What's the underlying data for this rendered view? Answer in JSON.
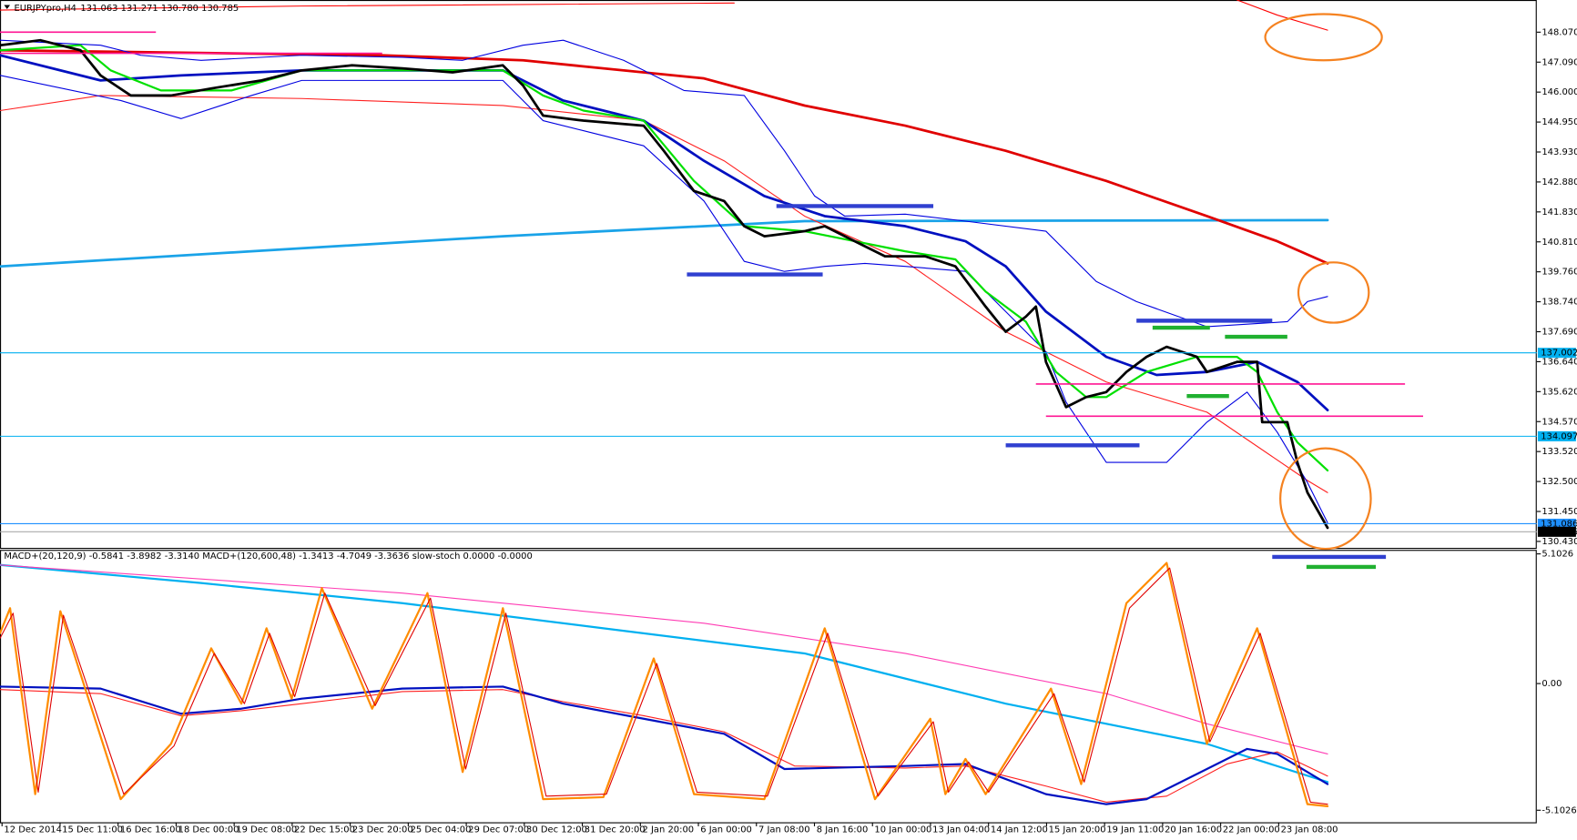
{
  "header": {
    "symbol": "EURJPYpro,H4",
    "ohlc": "131.063 131.271 130.780 130.785"
  },
  "price_axis": [
    "148.070",
    "147.090",
    "146.000",
    "144.950",
    "143.930",
    "142.880",
    "141.830",
    "140.810",
    "139.760",
    "138.740",
    "137.690",
    "136.640",
    "135.620",
    "134.570",
    "133.520",
    "132.500",
    "131.450",
    "130.430"
  ],
  "price_tags": [
    "137.002",
    "134.097",
    "131.086",
    "130.785"
  ],
  "time_axis": [
    "12 Dec 2014",
    "15 Dec 11:00",
    "16 Dec 16:00",
    "18 Dec 00:00",
    "19 Dec 08:00",
    "22 Dec 15:00",
    "23 Dec 20:00",
    "25 Dec 04:00",
    "29 Dec 07:00",
    "30 Dec 12:00",
    "31 Dec 20:00",
    "2 Jan 20:00",
    "6 Jan 00:00",
    "7 Jan 08:00",
    "8 Jan 16:00",
    "10 Jan 00:00",
    "13 Jan 04:00",
    "14 Jan 12:00",
    "15 Jan 20:00",
    "19 Jan 11:00",
    "20 Jan 16:00",
    "22 Jan 00:00",
    "23 Jan 08:00"
  ],
  "indicator": {
    "header": "MACD+(20,120,9) -0.5841 -3.8982 -3.3140  MACD+(120,600,48) -1.3413 -4.7049 -3.3636  slow-stoch 0.0000 -0.0000",
    "axis": [
      "5.1026",
      "0.00",
      "-5.1026"
    ]
  }
}
